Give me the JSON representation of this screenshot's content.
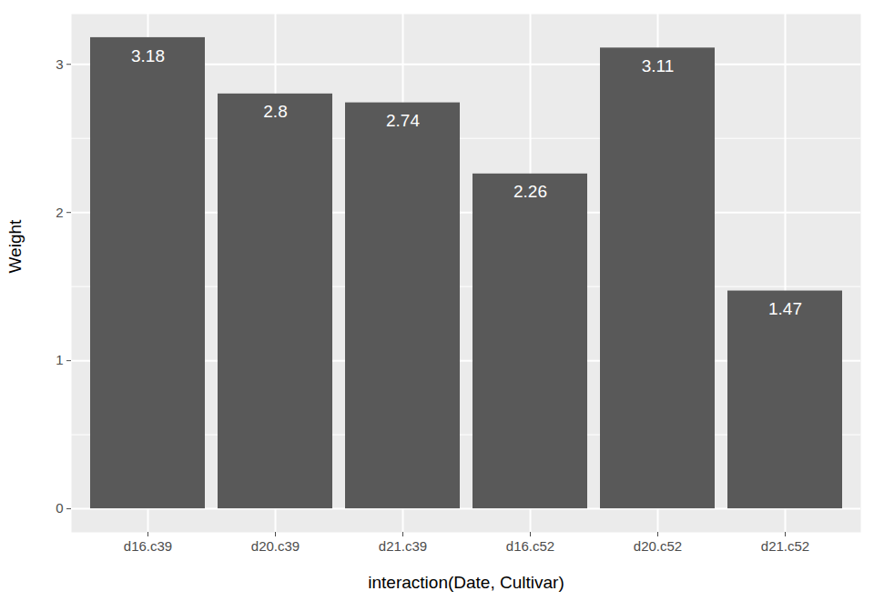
{
  "chart_data": {
    "type": "bar",
    "xlabel": "interaction(Date, Cultivar)",
    "ylabel": "Weight",
    "categories": [
      "d16.c39",
      "d20.c39",
      "d21.c39",
      "d16.c52",
      "d20.c52",
      "d21.c52"
    ],
    "values": [
      3.18,
      2.8,
      2.74,
      2.26,
      3.11,
      1.47
    ],
    "color": "#595959",
    "ylim": [
      -0.159,
      3.339
    ],
    "yticks": [
      0,
      1,
      2,
      3
    ],
    "grid": true,
    "data_labels": true
  }
}
